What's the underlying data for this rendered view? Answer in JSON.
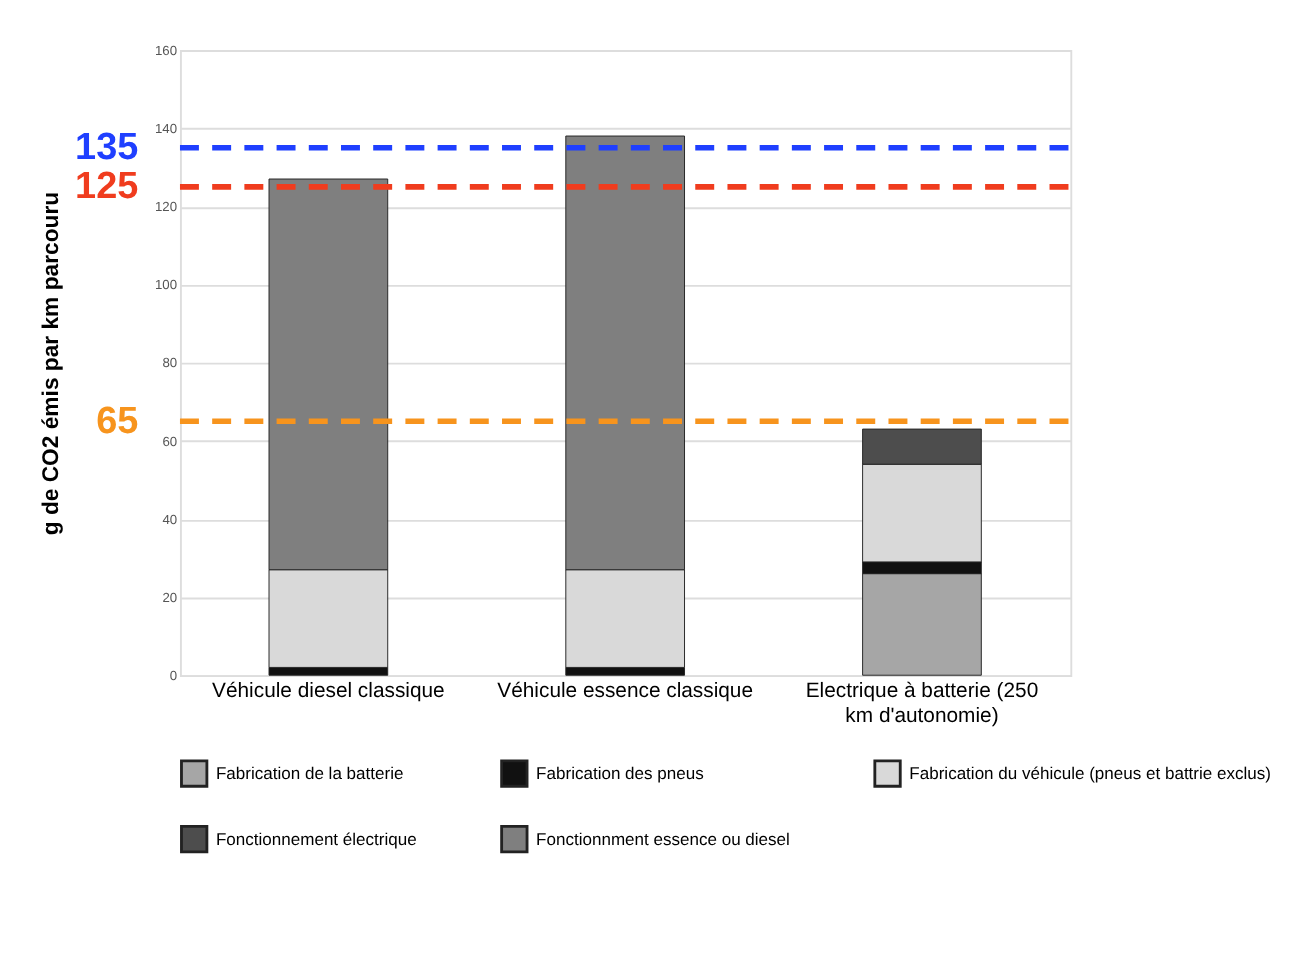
{
  "chart_data": {
    "type": "bar",
    "stacked": true,
    "ylabel": "g de CO2 émis par km parcouru",
    "categories": [
      "Véhicule diesel classique",
      "Véhicule essence classique",
      "Electrique à batterie (250 km d'autonomie)"
    ],
    "series": [
      {
        "name": "Fabrication de la batterie",
        "color": "#a6a6a6",
        "values": [
          null,
          null,
          26
        ]
      },
      {
        "name": "Fabrication des pneus",
        "color": "#111111",
        "values": [
          2,
          2,
          3
        ]
      },
      {
        "name": "Fabrication du véhicule (pneus et battrie exclus)",
        "color": "#d9d9d9",
        "values": [
          25,
          25,
          25
        ]
      },
      {
        "name": "Fonctionnement électrique",
        "color": "#4d4d4d",
        "values": [
          null,
          null,
          9
        ]
      },
      {
        "name": "Fonctionnment essence ou diesel",
        "color": "#7f7f7f",
        "values": [
          100,
          111,
          null
        ]
      }
    ],
    "ylim": [
      0,
      160
    ],
    "yticks": [
      0,
      20,
      40,
      60,
      80,
      100,
      120,
      140,
      160
    ],
    "grid": "y",
    "legend": "bottom",
    "ref_lines": [
      {
        "axis": "y",
        "value": 135,
        "label": "135",
        "color": "#1f3fff",
        "line_style": "dashed"
      },
      {
        "axis": "y",
        "value": 125,
        "label": "125",
        "color": "#f03c1e",
        "line_style": "dashed"
      },
      {
        "axis": "y",
        "value": 65,
        "label": "65",
        "color": "#f7941d",
        "line_style": "dashed"
      }
    ]
  }
}
